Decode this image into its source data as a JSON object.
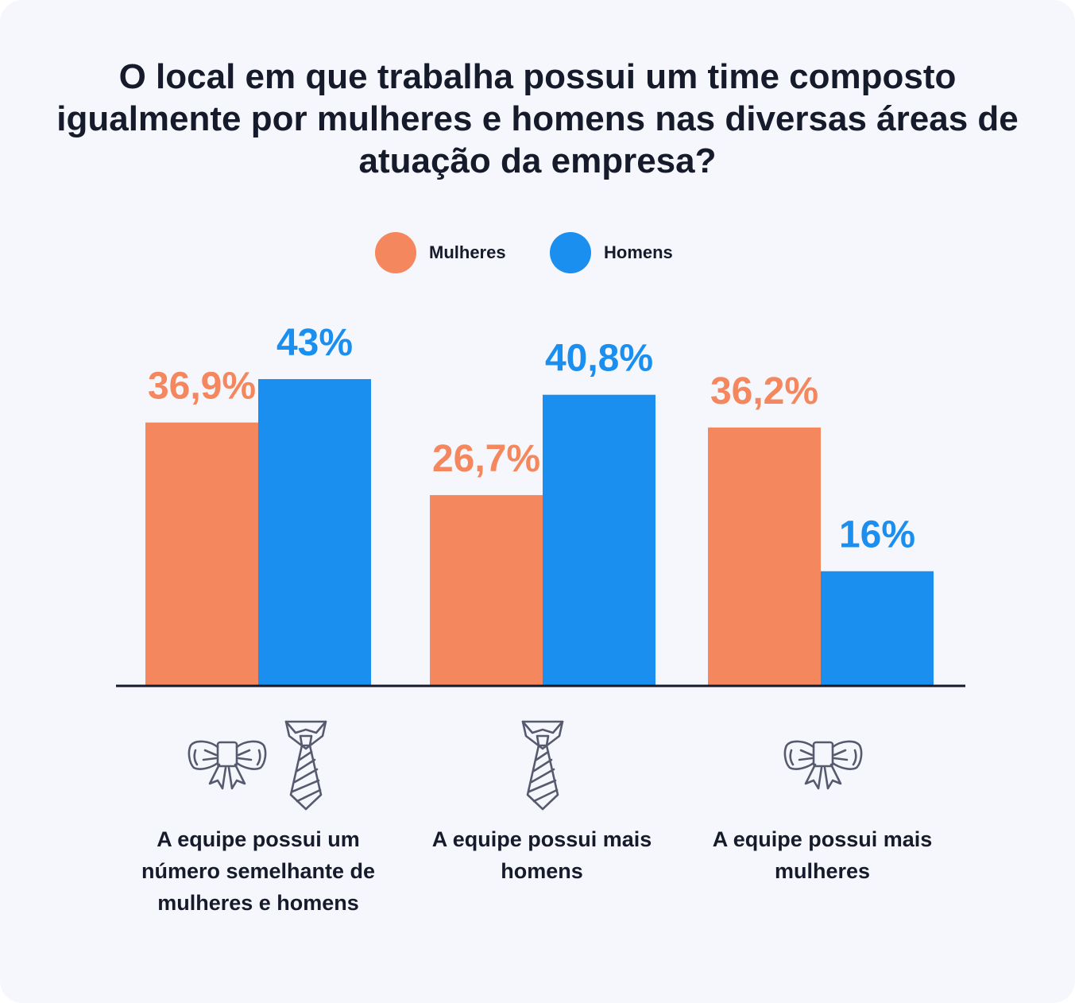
{
  "title": "O local em que trabalha possui um time composto igualmente por mulheres e homens nas diversas áreas de atuação da empresa?",
  "legend": {
    "women": "Mulheres",
    "men": "Homens"
  },
  "colors": {
    "women": "#f5875e",
    "men": "#1b8fef",
    "text": "#161b2b",
    "icon": "#565a6e",
    "background": "#f6f7fc"
  },
  "icons": {
    "both": [
      "bow-tie-icon",
      "necktie-icon"
    ],
    "men": [
      "necktie-icon"
    ],
    "women": [
      "bow-tie-icon"
    ]
  },
  "chart_data": {
    "type": "bar",
    "categories": [
      "A equipe possui um número semelhante de mulheres e homens",
      "A equipe possui mais homens",
      "A equipe possui mais mulheres"
    ],
    "series": [
      {
        "name": "Mulheres",
        "values": [
          36.9,
          26.7,
          36.2
        ],
        "labels": [
          "36,9%",
          "26,7%",
          "36,2%"
        ]
      },
      {
        "name": "Homens",
        "values": [
          43,
          40.8,
          16
        ],
        "labels": [
          "43%",
          "40,8%",
          "16%"
        ]
      }
    ],
    "title": "O local em que trabalha possui um time composto igualmente por mulheres e homens nas diversas áreas de atuação da empresa?",
    "xlabel": "",
    "ylabel": "",
    "ylim": [
      0,
      43
    ],
    "grid": false,
    "legend_position": "top-center"
  }
}
